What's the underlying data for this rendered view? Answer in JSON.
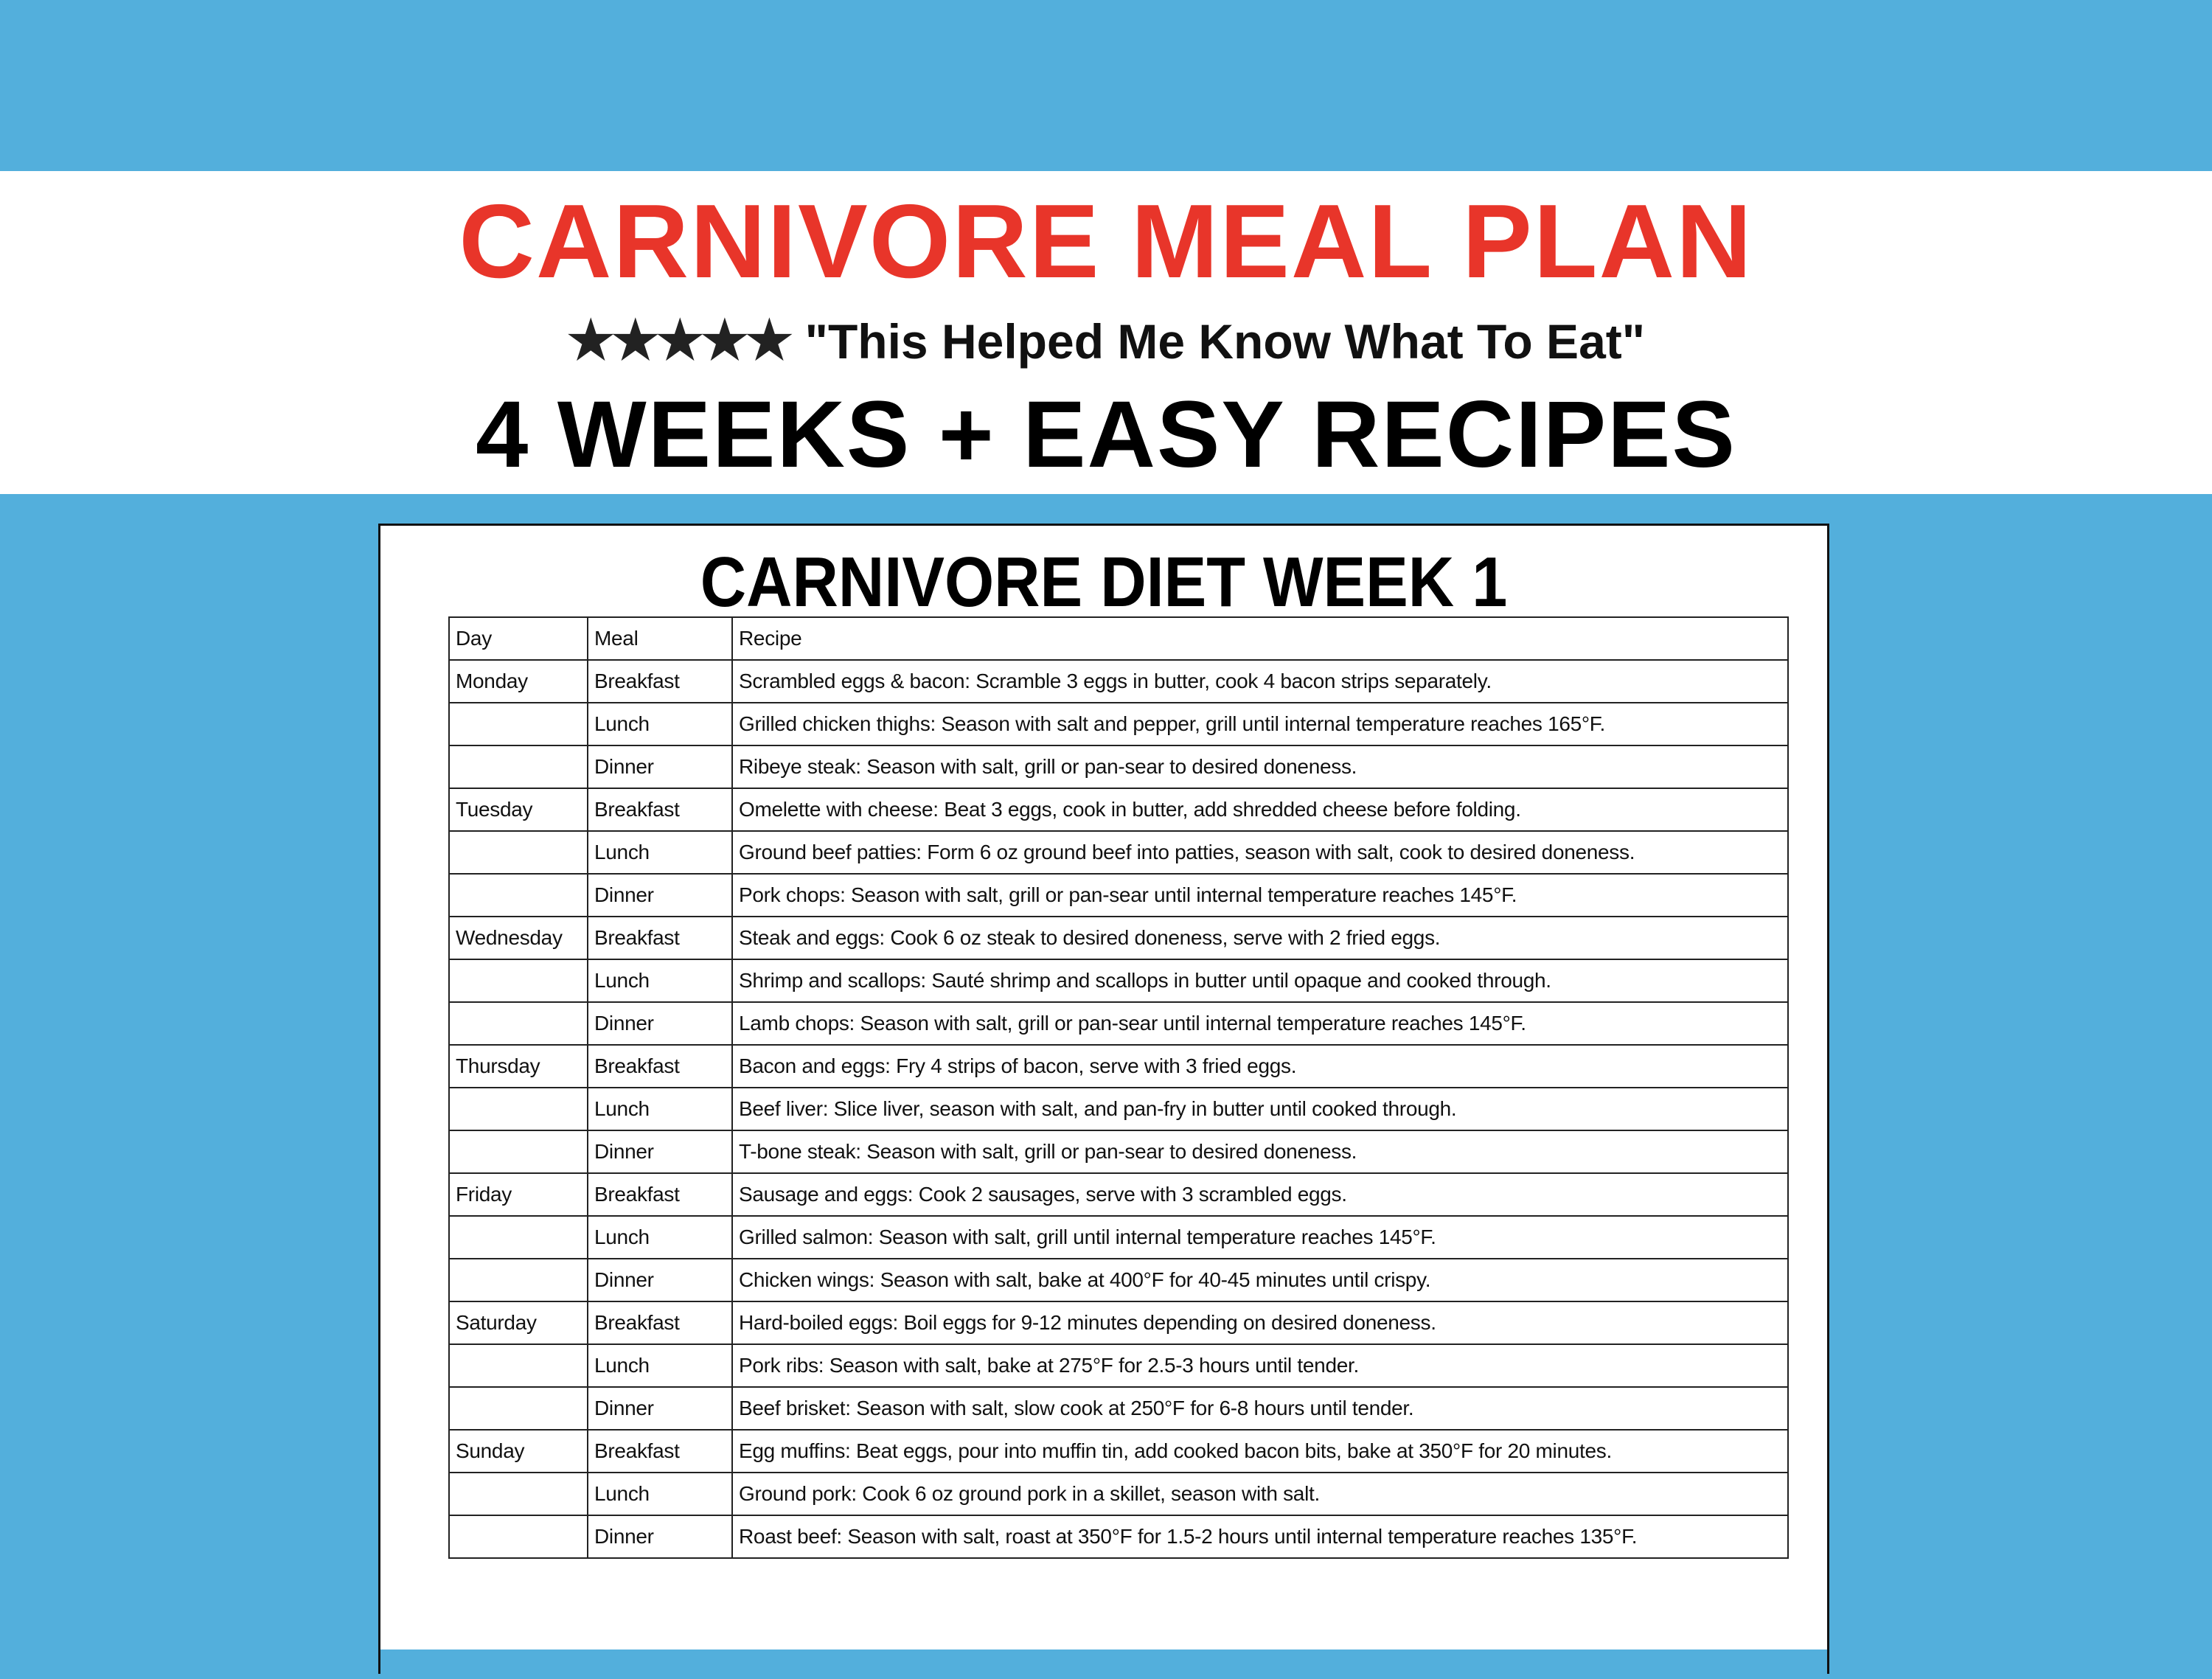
{
  "header": {
    "title": "CARNIVORE MEAL PLAN",
    "title_color": "#e8352a",
    "rating_stars": 5,
    "stars_icon": "★★★★★",
    "quote": "\"This Helped Me Know What To Eat\"",
    "subtitle": "4 WEEKS + EASY RECIPES"
  },
  "colors": {
    "background": "#53afdc"
  },
  "card": {
    "title": "CARNIVORE DIET WEEK 1",
    "columns": [
      "Day",
      "Meal",
      "Recipe"
    ],
    "rows": [
      [
        "Monday",
        "Breakfast",
        "Scrambled eggs & bacon: Scramble 3 eggs in butter, cook 4 bacon strips separately."
      ],
      [
        "",
        "Lunch",
        "Grilled chicken thighs: Season with salt and pepper, grill until internal temperature reaches 165°F."
      ],
      [
        "",
        "Dinner",
        "Ribeye steak: Season with salt, grill or pan-sear to desired doneness."
      ],
      [
        "Tuesday",
        "Breakfast",
        "Omelette with cheese: Beat 3 eggs, cook in butter, add shredded cheese before folding."
      ],
      [
        "",
        "Lunch",
        "Ground beef patties: Form 6 oz ground beef into patties, season with salt, cook to desired doneness."
      ],
      [
        "",
        "Dinner",
        "Pork chops: Season with salt, grill or pan-sear until internal temperature reaches 145°F."
      ],
      [
        "Wednesday",
        "Breakfast",
        "Steak and eggs: Cook 6 oz steak to desired doneness, serve with 2 fried eggs."
      ],
      [
        "",
        "Lunch",
        "Shrimp and scallops: Sauté shrimp and scallops in butter until opaque and cooked through."
      ],
      [
        "",
        "Dinner",
        "Lamb chops: Season with salt, grill or pan-sear until internal temperature reaches 145°F."
      ],
      [
        "Thursday",
        "Breakfast",
        "Bacon and eggs: Fry 4 strips of bacon, serve with 3 fried eggs."
      ],
      [
        "",
        "Lunch",
        "Beef liver: Slice liver, season with salt, and pan-fry in butter until cooked through."
      ],
      [
        "",
        "Dinner",
        "T-bone steak: Season with salt, grill or pan-sear to desired doneness."
      ],
      [
        "Friday",
        "Breakfast",
        "Sausage and eggs: Cook 2 sausages, serve with 3 scrambled eggs."
      ],
      [
        "",
        "Lunch",
        "Grilled salmon: Season with salt, grill until internal temperature reaches 145°F."
      ],
      [
        "",
        "Dinner",
        "Chicken wings: Season with salt, bake at 400°F for 40-45 minutes until crispy."
      ],
      [
        "Saturday",
        "Breakfast",
        "Hard-boiled eggs: Boil eggs for 9-12 minutes depending on desired doneness."
      ],
      [
        "",
        "Lunch",
        "Pork ribs: Season with salt, bake at 275°F for 2.5-3 hours until tender."
      ],
      [
        "",
        "Dinner",
        "Beef brisket: Season with salt, slow cook at 250°F for 6-8 hours until tender."
      ],
      [
        "Sunday",
        "Breakfast",
        "Egg muffins: Beat eggs, pour into muffin tin, add cooked bacon bits, bake at 350°F for 20 minutes."
      ],
      [
        "",
        "Lunch",
        "Ground pork: Cook 6 oz ground pork in a skillet, season with salt."
      ],
      [
        "",
        "Dinner",
        "Roast beef: Season with salt, roast at 350°F for 1.5-2 hours until internal temperature reaches 135°F."
      ]
    ]
  }
}
